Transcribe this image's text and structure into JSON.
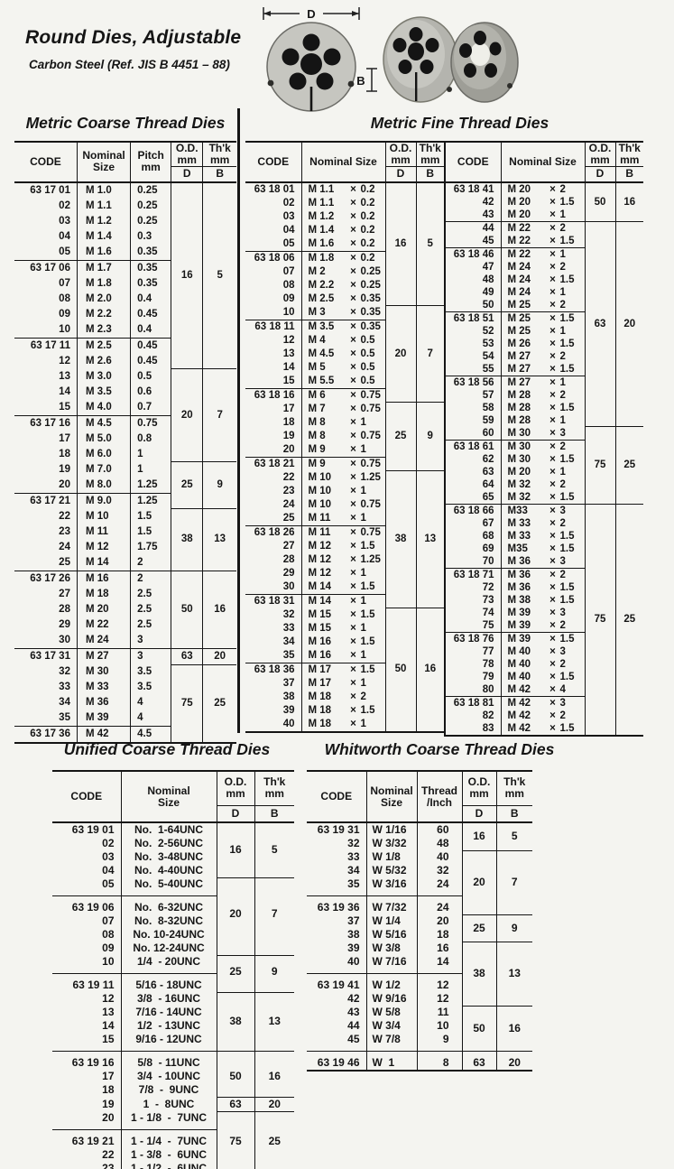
{
  "page": {
    "title": "Round Dies, Adjustable",
    "subtitle": "Carbon Steel  (Ref. JIS B 4451 – 88)",
    "dimension_labels": {
      "d": "D",
      "b": "B"
    }
  },
  "sections": {
    "metric_coarse": {
      "title": "Metric Coarse Thread Dies"
    },
    "metric_fine": {
      "title": "Metric Fine Thread Dies"
    },
    "unified": {
      "title": "Unified Coarse Thread Dies"
    },
    "whitworth": {
      "title": "Whitworth Coarse Thread Dies"
    }
  },
  "colors": {
    "ink": "#151515",
    "paper": "#f4f4f0",
    "die_body": "#c2c2bc"
  },
  "tables": {
    "metric_coarse": {
      "cls": "t-coarse",
      "h": {
        "code": "CODE",
        "nominal": [
          "Nominal",
          "Size"
        ],
        "pitch": [
          "Pitch",
          "mm"
        ],
        "od": [
          "O.D.",
          "mm"
        ],
        "thk": [
          "Th'k",
          "mm"
        ],
        "d": "D",
        "b": "B"
      },
      "rows": [
        {
          "c": "63 17 01",
          "s": "M 1.0",
          "p": "0.25",
          "od": [
            "16",
            "5",
            12
          ]
        },
        {
          "c": "02",
          "s": "M 1.1",
          "p": "0.25"
        },
        {
          "c": "03",
          "s": "M 1.2",
          "p": "0.25"
        },
        {
          "c": "04",
          "s": "M 1.4",
          "p": "0.3"
        },
        {
          "c": "05",
          "s": "M 1.6",
          "p": "0.35"
        },
        {
          "c": "63 17 06",
          "s": "M 1.7",
          "p": "0.35",
          "r": 1
        },
        {
          "c": "07",
          "s": "M 1.8",
          "p": "0.35"
        },
        {
          "c": "08",
          "s": "M 2.0",
          "p": "0.4"
        },
        {
          "c": "09",
          "s": "M 2.2",
          "p": "0.45"
        },
        {
          "c": "10",
          "s": "M 2.3",
          "p": "0.4"
        },
        {
          "c": "63 17 11",
          "s": "M 2.5",
          "p": "0.45",
          "r": 1
        },
        {
          "c": "12",
          "s": "M 2.6",
          "p": "0.45"
        },
        {
          "c": "13",
          "s": "M 3.0",
          "p": "0.5",
          "od": [
            "20",
            "7",
            6
          ]
        },
        {
          "c": "14",
          "s": "M 3.5",
          "p": "0.6"
        },
        {
          "c": "15",
          "s": "M 4.0",
          "p": "0.7"
        },
        {
          "c": "63 17 16",
          "s": "M 4.5",
          "p": "0.75",
          "r": 1
        },
        {
          "c": "17",
          "s": "M 5.0",
          "p": "0.8"
        },
        {
          "c": "18",
          "s": "M 6.0",
          "p": "1"
        },
        {
          "c": "19",
          "s": "M 7.0",
          "p": "1",
          "od": [
            "25",
            "9",
            3
          ]
        },
        {
          "c": "20",
          "s": "M 8.0",
          "p": "1.25"
        },
        {
          "c": "63 17 21",
          "s": "M 9.0",
          "p": "1.25",
          "r": 1
        },
        {
          "c": "22",
          "s": "M 10",
          "p": "1.5",
          "od": [
            "38",
            "13",
            4
          ]
        },
        {
          "c": "23",
          "s": "M 11",
          "p": "1.5"
        },
        {
          "c": "24",
          "s": "M 12",
          "p": "1.75"
        },
        {
          "c": "25",
          "s": "M 14",
          "p": "2"
        },
        {
          "c": "63 17 26",
          "s": "M 16",
          "p": "2",
          "r": 1,
          "od": [
            "50",
            "16",
            5
          ]
        },
        {
          "c": "27",
          "s": "M 18",
          "p": "2.5"
        },
        {
          "c": "28",
          "s": "M 20",
          "p": "2.5"
        },
        {
          "c": "29",
          "s": "M 22",
          "p": "2.5"
        },
        {
          "c": "30",
          "s": "M 24",
          "p": "3"
        },
        {
          "c": "63 17 31",
          "s": "M 27",
          "p": "3",
          "r": 1,
          "od": [
            "63",
            "20",
            1
          ]
        },
        {
          "c": "32",
          "s": "M 30",
          "p": "3.5",
          "od": [
            "75",
            "25",
            5
          ]
        },
        {
          "c": "33",
          "s": "M 33",
          "p": "3.5"
        },
        {
          "c": "34",
          "s": "M 36",
          "p": "4"
        },
        {
          "c": "35",
          "s": "M 39",
          "p": "4"
        },
        {
          "c": "63 17 36",
          "s": "M 42",
          "p": "4.5",
          "r": 1
        }
      ]
    },
    "metric_fine_left": {
      "cls": "t-finel",
      "split": true,
      "h": {
        "code": "CODE",
        "nominal": "Nominal Size",
        "od": [
          "O.D.",
          "mm"
        ],
        "thk": [
          "Th'k",
          "mm"
        ],
        "d": "D",
        "b": "B"
      },
      "rows": [
        {
          "c": "63 18 01",
          "s": "M 1.1 × 0.2",
          "od": [
            "16",
            "5",
            9
          ]
        },
        {
          "c": "02",
          "s": "M 1.1 × 0.2"
        },
        {
          "c": "03",
          "s": "M 1.2 × 0.2"
        },
        {
          "c": "04",
          "s": "M 1.4 × 0.2"
        },
        {
          "c": "05",
          "s": "M 1.6 × 0.2"
        },
        {
          "c": "63 18 06",
          "s": "M 1.8 × 0.2",
          "r": 1
        },
        {
          "c": "07",
          "s": "M 2 × 0.25"
        },
        {
          "c": "08",
          "s": "M 2.2 × 0.25"
        },
        {
          "c": "09",
          "s": "M 2.5 × 0.35"
        },
        {
          "c": "10",
          "s": "M 3 × 0.35",
          "od": [
            "20",
            "7",
            7
          ]
        },
        {
          "c": "63 18 11",
          "s": "M 3.5 × 0.35",
          "r": 1
        },
        {
          "c": "12",
          "s": "M 4 × 0.5"
        },
        {
          "c": "13",
          "s": "M 4.5 × 0.5"
        },
        {
          "c": "14",
          "s": "M 5 × 0.5"
        },
        {
          "c": "15",
          "s": "M 5.5 × 0.5"
        },
        {
          "c": "63 18 16",
          "s": "M 6 × 0.75",
          "r": 1
        },
        {
          "c": "17",
          "s": "M 7 × 0.75",
          "od": [
            "25",
            "9",
            5
          ]
        },
        {
          "c": "18",
          "s": "M 8 × 1"
        },
        {
          "c": "19",
          "s": "M 8 × 0.75"
        },
        {
          "c": "20",
          "s": "M 9 × 1"
        },
        {
          "c": "63 18 21",
          "s": "M 9 × 0.75",
          "r": 1
        },
        {
          "c": "22",
          "s": "M 10 × 1.25",
          "od": [
            "38",
            "13",
            10
          ]
        },
        {
          "c": "23",
          "s": "M 10 × 1"
        },
        {
          "c": "24",
          "s": "M 10 × 0.75"
        },
        {
          "c": "25",
          "s": "M 11 × 1"
        },
        {
          "c": "63 18 26",
          "s": "M 11 × 0.75",
          "r": 1
        },
        {
          "c": "27",
          "s": "M 12 × 1.5"
        },
        {
          "c": "28",
          "s": "M 12 × 1.25"
        },
        {
          "c": "29",
          "s": "M 12 × 1"
        },
        {
          "c": "30",
          "s": "M 14 × 1.5"
        },
        {
          "c": "63 18 31",
          "s": "M 14 × 1",
          "r": 1
        },
        {
          "c": "32",
          "s": "M 15 × 1.5",
          "od": [
            "50",
            "16",
            9
          ]
        },
        {
          "c": "33",
          "s": "M 15 × 1"
        },
        {
          "c": "34",
          "s": "M 16 × 1.5"
        },
        {
          "c": "35",
          "s": "M 16 × 1"
        },
        {
          "c": "63 18 36",
          "s": "M 17 × 1.5",
          "r": 1
        },
        {
          "c": "37",
          "s": "M 17 × 1"
        },
        {
          "c": "38",
          "s": "M 18 × 2"
        },
        {
          "c": "39",
          "s": "M 18 × 1.5"
        },
        {
          "c": "40",
          "s": "M 18 × 1"
        }
      ]
    },
    "metric_fine_right": {
      "cls": "t-finer",
      "split": true,
      "h": {
        "code": "CODE",
        "nominal": "Nominal Size",
        "od": [
          "O.D.",
          "mm"
        ],
        "thk": [
          "Th'k",
          "mm"
        ],
        "d": "D",
        "b": "B"
      },
      "rows": [
        {
          "c": "63 18 41",
          "s": "M 20 × 2",
          "od": [
            "50",
            "16",
            3
          ]
        },
        {
          "c": "42",
          "s": "M 20 × 1.5"
        },
        {
          "c": "43",
          "s": "M 20 × 1"
        },
        {
          "c": "44",
          "s": "M 22 × 2",
          "r": 1,
          "od": [
            "63",
            "20",
            16
          ]
        },
        {
          "c": "45",
          "s": "M 22 × 1.5"
        },
        {
          "c": "63 18 46",
          "s": "M 22 × 1",
          "r": 1
        },
        {
          "c": "47",
          "s": "M 24 × 2"
        },
        {
          "c": "48",
          "s": "M 24 × 1.5"
        },
        {
          "c": "49",
          "s": "M 24 × 1"
        },
        {
          "c": "50",
          "s": "M 25 × 2"
        },
        {
          "c": "63 18 51",
          "s": "M 25 × 1.5",
          "r": 1
        },
        {
          "c": "52",
          "s": "M 25 × 1"
        },
        {
          "c": "53",
          "s": "M 26 × 1.5"
        },
        {
          "c": "54",
          "s": "M 27 × 2"
        },
        {
          "c": "55",
          "s": "M 27 × 1.5"
        },
        {
          "c": "63 18 56",
          "s": "M 27 × 1",
          "r": 1
        },
        {
          "c": "57",
          "s": "M 28 × 2"
        },
        {
          "c": "58",
          "s": "M 28 × 1.5"
        },
        {
          "c": "59",
          "s": "M 28 × 1"
        },
        {
          "c": "60",
          "s": "M 30 × 3",
          "od": [
            "75",
            "25",
            6
          ]
        },
        {
          "c": "63 18 61",
          "s": "M 30 × 2",
          "r": 1
        },
        {
          "c": "62",
          "s": "M 30 × 1.5"
        },
        {
          "c": "63",
          "s": "M 20 × 1"
        },
        {
          "c": "64",
          "s": "M 32 × 2"
        },
        {
          "c": "65",
          "s": "M 32 × 1.5"
        },
        {
          "c": "63 18 66",
          "s": "M33 × 3",
          "r": 1,
          "od": [
            "75",
            "25",
            18
          ]
        },
        {
          "c": "67",
          "s": "M 33 × 2"
        },
        {
          "c": "68",
          "s": "M 33 × 1.5"
        },
        {
          "c": "69",
          "s": "M35 × 1.5"
        },
        {
          "c": "70",
          "s": "M 36 × 3"
        },
        {
          "c": "63 18 71",
          "s": "M 36 × 2",
          "r": 1
        },
        {
          "c": "72",
          "s": "M 36 × 1.5"
        },
        {
          "c": "73",
          "s": "M 38 × 1.5"
        },
        {
          "c": "74",
          "s": "M 39 × 3"
        },
        {
          "c": "75",
          "s": "M 39 × 2"
        },
        {
          "c": "63 18 76",
          "s": "M 39 × 1.5",
          "r": 1
        },
        {
          "c": "77",
          "s": "M 40 × 3"
        },
        {
          "c": "78",
          "s": "M 40 × 2"
        },
        {
          "c": "79",
          "s": "M 40 × 1.5"
        },
        {
          "c": "80",
          "s": "M 42 × 4"
        },
        {
          "c": "63 18 81",
          "s": "M 42 × 3",
          "r": 1
        },
        {
          "c": "82",
          "s": "M 42 × 2"
        },
        {
          "c": "83",
          "s": "M 42 × 1.5"
        }
      ]
    },
    "unified": {
      "cls": "t-uni",
      "h": {
        "code": "CODE",
        "nominal": [
          "Nominal",
          "Size"
        ],
        "od": [
          "O.D.",
          "mm"
        ],
        "thk": [
          "Th'k",
          "mm"
        ],
        "d": "D",
        "b": "B"
      },
      "rows": [
        {
          "c": "63 19 01",
          "s": "No.  1-64UNC",
          "od": [
            "16",
            "5",
            4
          ]
        },
        {
          "c": "02",
          "s": "No.  2-56UNC"
        },
        {
          "c": "03",
          "s": "No.  3-48UNC"
        },
        {
          "c": "04",
          "s": "No.  4-40UNC"
        },
        {
          "c": "05",
          "s": "No.  5-40UNC",
          "od": [
            "20",
            "7",
            5
          ],
          "gb": 1
        },
        {
          "c": "63 19 06",
          "s": "No.  6-32UNC",
          "r": 1,
          "g": 1
        },
        {
          "c": "07",
          "s": "No.  8-32UNC"
        },
        {
          "c": "08",
          "s": "No. 10-24UNC"
        },
        {
          "c": "09",
          "s": "No. 12-24UNC"
        },
        {
          "c": "10",
          "s": "1/4  - 20UNC",
          "od": [
            "25",
            "9",
            2
          ],
          "gb": 1
        },
        {
          "c": "63 19 11",
          "s": "5/16 - 18UNC",
          "r": 1,
          "g": 1
        },
        {
          "c": "12",
          "s": "3/8  - 16UNC",
          "od": [
            "38",
            "13",
            4
          ]
        },
        {
          "c": "13",
          "s": "7/16 - 14UNC"
        },
        {
          "c": "14",
          "s": "1/2  - 13UNC"
        },
        {
          "c": "15",
          "s": "9/16 - 12UNC",
          "gb": 1
        },
        {
          "c": "63 19 16",
          "s": "5/8  - 11UNC",
          "r": 1,
          "g": 1,
          "od": [
            "50",
            "16",
            3
          ]
        },
        {
          "c": "17",
          "s": "3/4  - 10UNC"
        },
        {
          "c": "18",
          "s": "7/8  -  9UNC"
        },
        {
          "c": "19",
          "s": "1  -  8UNC",
          "od": [
            "63",
            "20",
            1
          ]
        },
        {
          "c": "20",
          "s": "1 - 1/8  -  7UNC",
          "od": [
            "75",
            "25",
            4
          ],
          "gb": 1
        },
        {
          "c": "63 19 21",
          "s": "1 - 1/4  -  7UNC",
          "r": 1,
          "g": 1
        },
        {
          "c": "22",
          "s": "1 - 3/8  -  6UNC"
        },
        {
          "c": "23",
          "s": "1 - 1/2  -  6UNC"
        }
      ]
    },
    "whitworth": {
      "cls": "t-whit",
      "h": {
        "code": "CODE",
        "nominal": [
          "Nominal",
          "Size"
        ],
        "thread": [
          "Thread",
          "/Inch"
        ],
        "od": [
          "O.D.",
          "mm"
        ],
        "thk": [
          "Th'k",
          "mm"
        ],
        "d": "D",
        "b": "B"
      },
      "rows": [
        {
          "c": "63 19 31",
          "s": "W 1/16",
          "t": "60",
          "od": [
            "16",
            "5",
            2
          ]
        },
        {
          "c": "32",
          "s": "W 3/32",
          "t": "48"
        },
        {
          "c": "33",
          "s": "W 1/8",
          "t": "40",
          "od": [
            "20",
            "7",
            4
          ]
        },
        {
          "c": "34",
          "s": "W 5/32",
          "t": "32"
        },
        {
          "c": "35",
          "s": "W 3/16",
          "t": "24",
          "gb": 1
        },
        {
          "c": "63 19 36",
          "s": "W 7/32",
          "t": "24",
          "r": 1,
          "g": 1
        },
        {
          "c": "37",
          "s": "W 1/4",
          "t": "20",
          "od": [
            "25",
            "9",
            2
          ]
        },
        {
          "c": "38",
          "s": "W 5/16",
          "t": "18"
        },
        {
          "c": "39",
          "s": "W 3/8",
          "t": "16",
          "od": [
            "38",
            "13",
            4
          ]
        },
        {
          "c": "40",
          "s": "W 7/16",
          "t": "14",
          "gb": 1
        },
        {
          "c": "63 19 41",
          "s": "W 1/2",
          "t": "12",
          "r": 1,
          "g": 1
        },
        {
          "c": "42",
          "s": "W 9/16",
          "t": "12"
        },
        {
          "c": "43",
          "s": "W 5/8",
          "t": "11",
          "od": [
            "50",
            "16",
            3
          ]
        },
        {
          "c": "44",
          "s": "W 3/4",
          "t": "10"
        },
        {
          "c": "45",
          "s": "W 7/8",
          "t": "9",
          "gb": 1
        },
        {
          "c": "63 19 46",
          "s": "W  1",
          "t": "8",
          "r": 1,
          "g": 1,
          "od": [
            "63",
            "20",
            1
          ]
        }
      ]
    }
  }
}
